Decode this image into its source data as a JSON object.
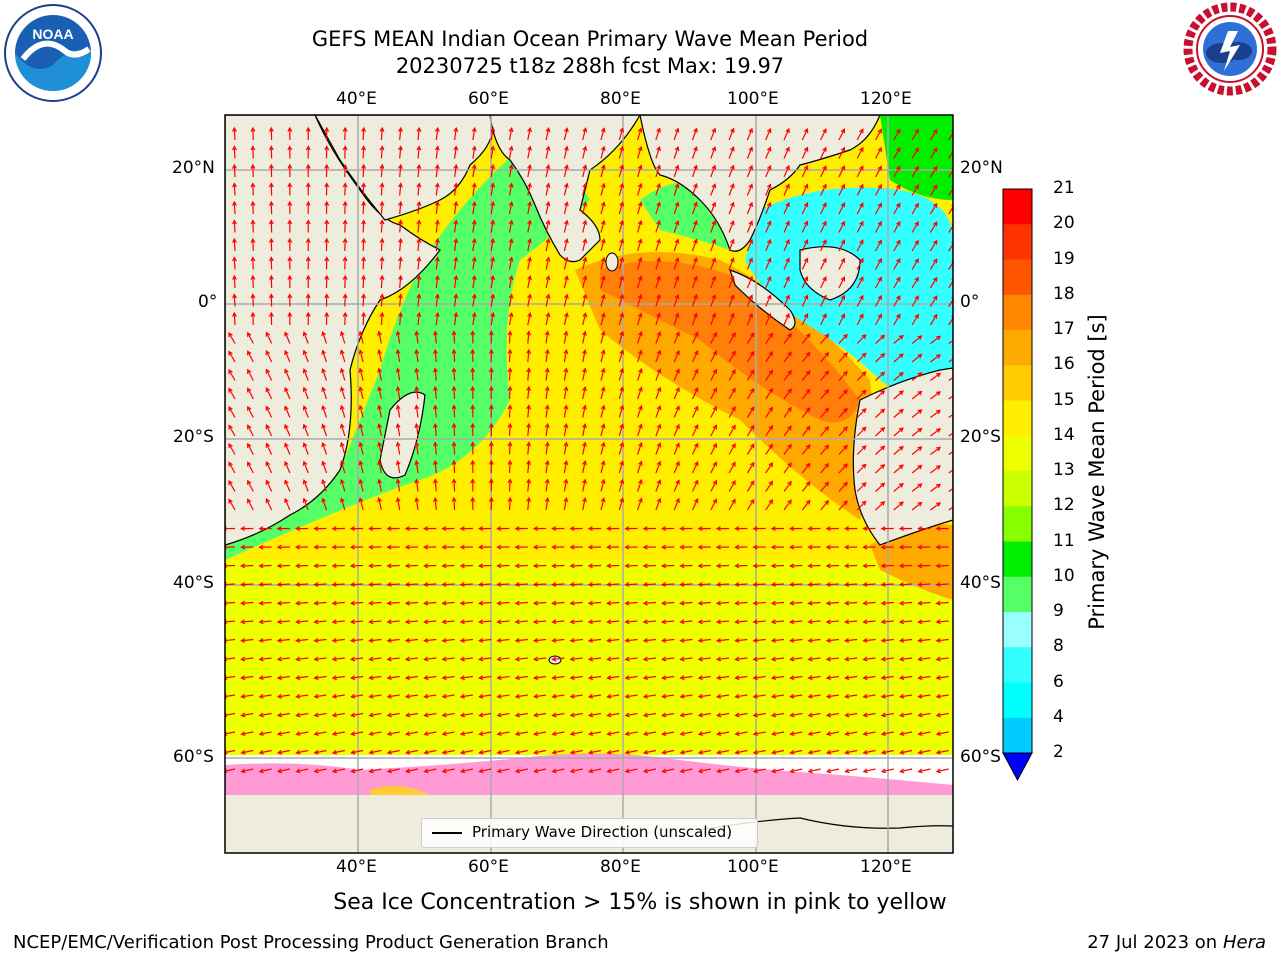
{
  "title": {
    "line1": "GEFS MEAN Indian Ocean Primary Wave Mean Period",
    "line2": "20230725 t18z 288h fcst   Max: 19.97"
  },
  "logos": {
    "left": "NOAA",
    "left_ring_text": "NATIONAL OCEANIC AND ATMOSPHERIC ADMINISTRATION · U.S. DEPARTMENT OF COMMERCE",
    "right_ring_text": "NATIONAL WEATHER SERVICE"
  },
  "map": {
    "lon_labels": [
      "40°E",
      "60°E",
      "80°E",
      "100°E",
      "120°E"
    ],
    "lat_labels": [
      "20°N",
      "0°",
      "20°S",
      "40°S",
      "60°S"
    ],
    "legend_label": "Primary Wave Direction (unscaled)",
    "colors": {
      "land": "#eeecdc",
      "ocean_yellow": "#ffee00",
      "ocean_orange": "#ff7f0a",
      "ocean_green": "#55ff66",
      "ocean_cyan": "#33ffff",
      "arrow": "#ff0000",
      "ice": "#ff55cc"
    }
  },
  "colorbar": {
    "label": "Primary Wave Mean Period [s]",
    "ticks": [
      "21",
      "20",
      "19",
      "18",
      "17",
      "16",
      "15",
      "14",
      "13",
      "12",
      "11",
      "10",
      "9",
      "8",
      "6",
      "4",
      "2"
    ],
    "colors": [
      "#ff0000",
      "#ff3300",
      "#ff5500",
      "#ff8800",
      "#ffaa00",
      "#ffcc00",
      "#ffee00",
      "#eeff00",
      "#ccff00",
      "#88ff00",
      "#00ee00",
      "#55ff66",
      "#99ffff",
      "#33ffff",
      "#00ffff",
      "#00ccff",
      "#0077ff"
    ],
    "extend_color": "#0000ff"
  },
  "note": "Sea Ice Concentration > 15% is shown in pink to yellow",
  "footer": {
    "left": "NCEP/EMC/Verification Post Processing Product Generation Branch",
    "right_prefix": "27 Jul 2023 on ",
    "right_host": "Hera"
  }
}
